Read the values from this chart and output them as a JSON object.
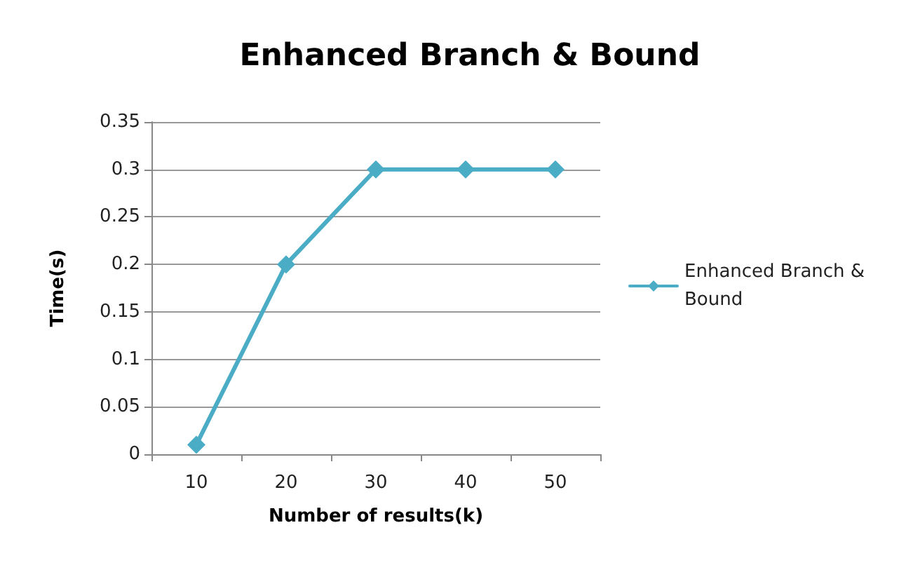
{
  "chart_data": {
    "type": "line",
    "title": "Enhanced Branch & Bound",
    "xlabel": "Number of results(k)",
    "ylabel": "Time(s)",
    "categories": [
      "10",
      "20",
      "30",
      "40",
      "50"
    ],
    "series": [
      {
        "name": "Enhanced Branch & Bound",
        "color": "#4bacc6",
        "values": [
          0.01,
          0.2,
          0.3,
          0.3,
          0.3
        ]
      }
    ],
    "ylim": [
      0,
      0.35
    ],
    "yticks": [
      0,
      0.05,
      0.1,
      0.15,
      0.2,
      0.25,
      0.3,
      0.35
    ],
    "grid": "y",
    "legend": "right",
    "marker": "diamond",
    "line_style": "solid"
  }
}
